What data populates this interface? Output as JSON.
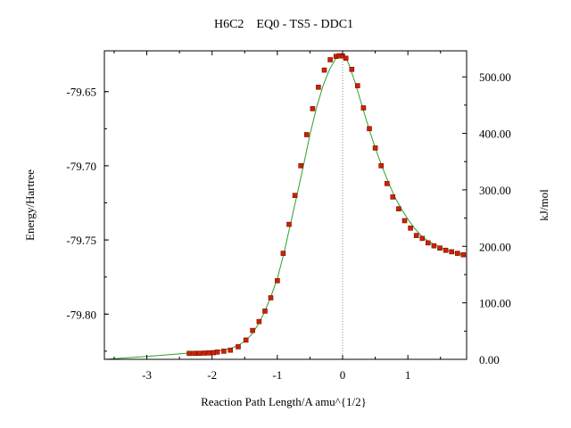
{
  "chart_data": {
    "type": "line",
    "title": "H6C2    EQ0 - TS5 - DDC1",
    "xlabel": "Reaction Path Length/A amu^{1/2}",
    "ylabel": "Energy/Hartree",
    "y2label": "kJ/mol",
    "xlim": [
      -3.65,
      1.9
    ],
    "ylim": [
      -79.8305,
      -79.6225
    ],
    "y2lim": [
      0.0,
      546.1
    ],
    "x_ticks": [
      -3,
      -2,
      -1,
      0,
      1
    ],
    "x_tick_labels": [
      "-3",
      "-2",
      "-1",
      "0",
      "1"
    ],
    "y_ticks": [
      -79.65,
      -79.7,
      -79.75,
      -79.8
    ],
    "y_tick_labels": [
      "-79.65",
      "-79.70",
      "-79.75",
      "-79.80"
    ],
    "y2_ticks": [
      0,
      100,
      200,
      300,
      400,
      500
    ],
    "y2_tick_labels": [
      "0.00",
      "100.00",
      "200.00",
      "300.00",
      "400.00",
      "500.00"
    ],
    "ts_marker_x": 0.0,
    "grid": false,
    "line_color": "#2ca02c",
    "point_color": "#cc2200",
    "series": [
      {
        "kind": "curve",
        "x": [
          -3.65,
          -3.3,
          -3.0,
          -2.7,
          -2.4,
          -2.2,
          -2.0,
          -1.85,
          -1.7,
          -1.6,
          -1.5,
          -1.4,
          -1.3,
          -1.2,
          -1.1,
          -1.0,
          -0.9,
          -0.8,
          -0.7,
          -0.6,
          -0.5,
          -0.4,
          -0.3,
          -0.2,
          -0.1,
          -0.05,
          0.0,
          0.05,
          0.1,
          0.2,
          0.3,
          0.4,
          0.5,
          0.6,
          0.7,
          0.8,
          0.9,
          1.0,
          1.1,
          1.2,
          1.3,
          1.4,
          1.5,
          1.6,
          1.7,
          1.8,
          1.9
        ],
        "y": [
          -79.8305,
          -79.8295,
          -79.8285,
          -79.8275,
          -79.8265,
          -79.8258,
          -79.825,
          -79.8245,
          -79.823,
          -79.821,
          -79.8185,
          -79.814,
          -79.8075,
          -79.799,
          -79.7885,
          -79.776,
          -79.759,
          -79.7395,
          -79.72,
          -79.7,
          -79.679,
          -79.661,
          -79.646,
          -79.635,
          -79.6275,
          -79.6255,
          -79.625,
          -79.627,
          -79.632,
          -79.645,
          -79.66,
          -79.6745,
          -79.688,
          -79.7,
          -79.711,
          -79.721,
          -79.729,
          -79.736,
          -79.742,
          -79.747,
          -79.7505,
          -79.753,
          -79.755,
          -79.757,
          -79.7585,
          -79.7595,
          -79.761
        ]
      },
      {
        "kind": "points",
        "x": [
          -2.35,
          -2.27,
          -2.2,
          -2.12,
          -2.05,
          -1.98,
          -1.92,
          -1.82,
          -1.72,
          -1.6,
          -1.48,
          -1.38,
          -1.28,
          -1.19,
          -1.1,
          -1.0,
          -0.91,
          -0.82,
          -0.73,
          -0.64,
          -0.55,
          -0.46,
          -0.37,
          -0.28,
          -0.19,
          -0.1,
          -0.05,
          0.0,
          0.05,
          0.14,
          0.23,
          0.32,
          0.41,
          0.5,
          0.59,
          0.68,
          0.77,
          0.86,
          0.95,
          1.04,
          1.13,
          1.22,
          1.31,
          1.4,
          1.49,
          1.58,
          1.67,
          1.76,
          1.85
        ],
        "y": [
          -79.8265,
          -79.8265,
          -79.8264,
          -79.8263,
          -79.8262,
          -79.826,
          -79.8256,
          -79.825,
          -79.8243,
          -79.822,
          -79.8175,
          -79.811,
          -79.805,
          -79.798,
          -79.789,
          -79.7775,
          -79.759,
          -79.7395,
          -79.72,
          -79.7,
          -79.679,
          -79.6615,
          -79.647,
          -79.6355,
          -79.6285,
          -79.6262,
          -79.6258,
          -79.626,
          -79.6275,
          -79.635,
          -79.646,
          -79.661,
          -79.675,
          -79.688,
          -79.7,
          -79.712,
          -79.721,
          -79.729,
          -79.737,
          -79.742,
          -79.747,
          -79.749,
          -79.752,
          -79.754,
          -79.7555,
          -79.757,
          -79.758,
          -79.759,
          -79.76
        ]
      }
    ]
  }
}
